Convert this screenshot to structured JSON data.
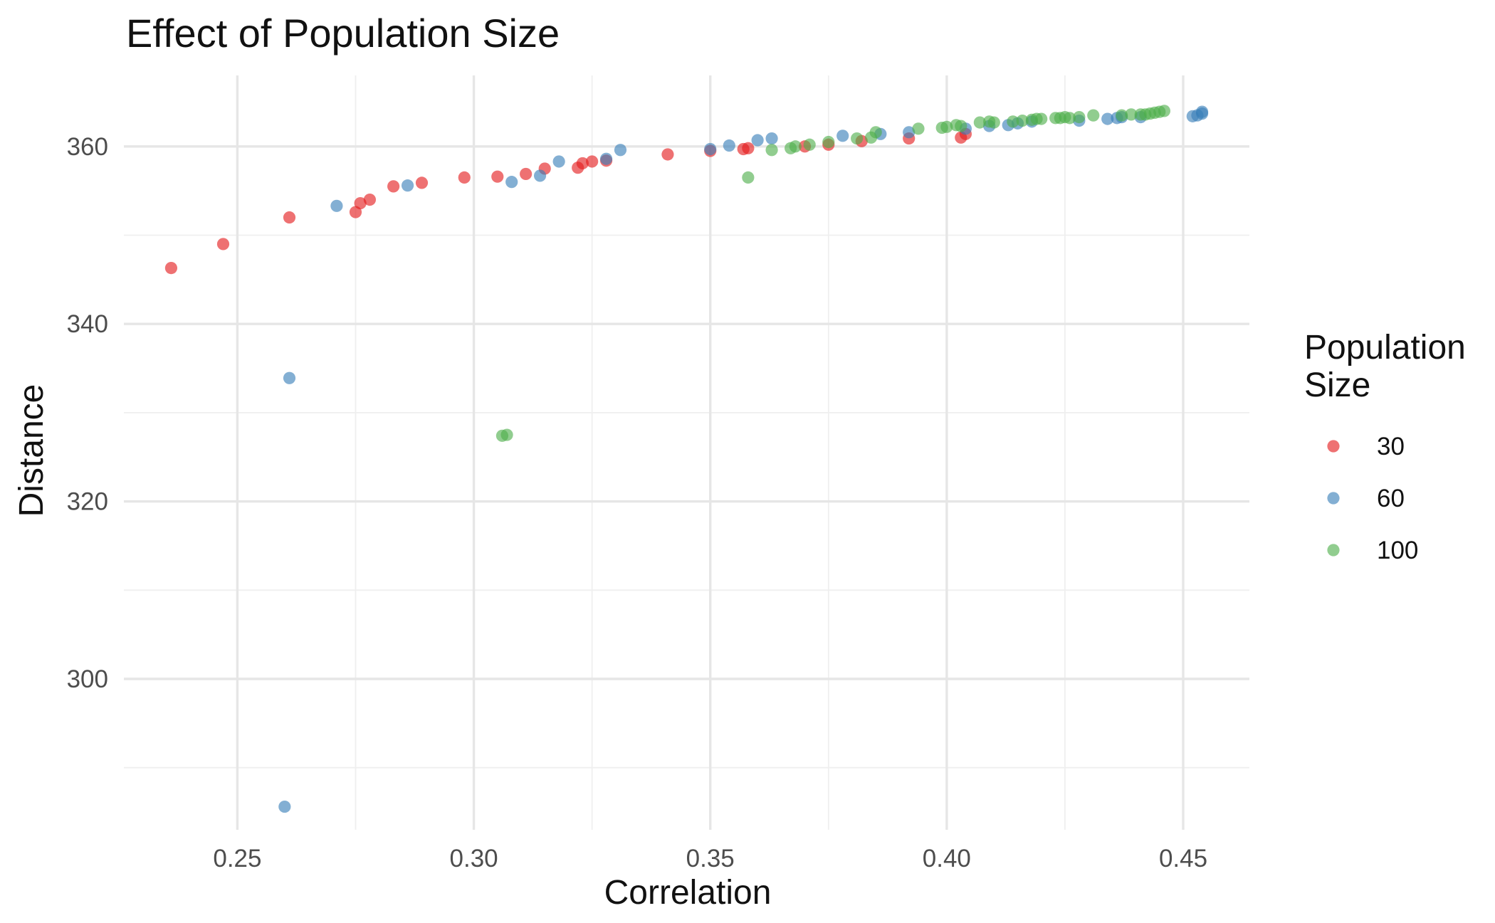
{
  "chart_data": {
    "type": "scatter",
    "title": "Effect of Population Size",
    "xlabel": "Correlation",
    "ylabel": "Distance",
    "xlim": [
      0.226,
      0.464
    ],
    "ylim": [
      283,
      368
    ],
    "x_ticks": [
      0.25,
      0.3,
      0.35,
      0.4,
      0.45
    ],
    "x_tick_labels": [
      "0.25",
      "0.30",
      "0.35",
      "0.40",
      "0.45"
    ],
    "y_ticks": [
      300,
      320,
      340,
      360
    ],
    "y_tick_labels": [
      "300",
      "320",
      "340",
      "360"
    ],
    "grid": true,
    "legend": {
      "title_lines": [
        "Population",
        "Size"
      ],
      "position": "right"
    },
    "series": [
      {
        "name": "30",
        "color": "#E41A1C",
        "points": [
          [
            0.236,
            346.3
          ],
          [
            0.247,
            349.0
          ],
          [
            0.261,
            352.0
          ],
          [
            0.275,
            352.6
          ],
          [
            0.276,
            353.6
          ],
          [
            0.278,
            354.0
          ],
          [
            0.283,
            355.5
          ],
          [
            0.289,
            355.9
          ],
          [
            0.298,
            356.5
          ],
          [
            0.305,
            356.6
          ],
          [
            0.311,
            356.9
          ],
          [
            0.315,
            357.5
          ],
          [
            0.322,
            357.6
          ],
          [
            0.323,
            358.1
          ],
          [
            0.325,
            358.3
          ],
          [
            0.328,
            358.4
          ],
          [
            0.341,
            359.1
          ],
          [
            0.35,
            359.5
          ],
          [
            0.357,
            359.7
          ],
          [
            0.358,
            359.8
          ],
          [
            0.37,
            360.0
          ],
          [
            0.375,
            360.2
          ],
          [
            0.382,
            360.6
          ],
          [
            0.392,
            360.9
          ],
          [
            0.403,
            361.0
          ],
          [
            0.404,
            361.4
          ]
        ]
      },
      {
        "name": "60",
        "color": "#377EB8",
        "points": [
          [
            0.26,
            285.6
          ],
          [
            0.261,
            333.9
          ],
          [
            0.271,
            353.3
          ],
          [
            0.286,
            355.6
          ],
          [
            0.308,
            356.0
          ],
          [
            0.314,
            356.7
          ],
          [
            0.318,
            358.3
          ],
          [
            0.328,
            358.6
          ],
          [
            0.331,
            359.6
          ],
          [
            0.35,
            359.7
          ],
          [
            0.354,
            360.1
          ],
          [
            0.36,
            360.7
          ],
          [
            0.363,
            360.9
          ],
          [
            0.378,
            361.2
          ],
          [
            0.386,
            361.4
          ],
          [
            0.392,
            361.6
          ],
          [
            0.404,
            362.0
          ],
          [
            0.409,
            362.3
          ],
          [
            0.413,
            362.4
          ],
          [
            0.415,
            362.6
          ],
          [
            0.418,
            362.8
          ],
          [
            0.428,
            362.9
          ],
          [
            0.434,
            363.1
          ],
          [
            0.436,
            363.2
          ],
          [
            0.437,
            363.3
          ],
          [
            0.441,
            363.3
          ],
          [
            0.452,
            363.4
          ],
          [
            0.453,
            363.5
          ],
          [
            0.454,
            363.7
          ],
          [
            0.454,
            363.9
          ]
        ]
      },
      {
        "name": "100",
        "color": "#4DAF4A",
        "points": [
          [
            0.306,
            327.4
          ],
          [
            0.307,
            327.5
          ],
          [
            0.358,
            356.5
          ],
          [
            0.363,
            359.6
          ],
          [
            0.367,
            359.8
          ],
          [
            0.368,
            360.0
          ],
          [
            0.371,
            360.2
          ],
          [
            0.375,
            360.5
          ],
          [
            0.381,
            360.9
          ],
          [
            0.384,
            361.0
          ],
          [
            0.385,
            361.6
          ],
          [
            0.394,
            362.0
          ],
          [
            0.399,
            362.1
          ],
          [
            0.4,
            362.2
          ],
          [
            0.402,
            362.4
          ],
          [
            0.403,
            362.3
          ],
          [
            0.407,
            362.7
          ],
          [
            0.409,
            362.8
          ],
          [
            0.41,
            362.7
          ],
          [
            0.414,
            362.8
          ],
          [
            0.416,
            362.9
          ],
          [
            0.418,
            363.0
          ],
          [
            0.419,
            363.1
          ],
          [
            0.42,
            363.1
          ],
          [
            0.423,
            363.2
          ],
          [
            0.424,
            363.2
          ],
          [
            0.425,
            363.3
          ],
          [
            0.426,
            363.2
          ],
          [
            0.428,
            363.3
          ],
          [
            0.431,
            363.5
          ],
          [
            0.437,
            363.5
          ],
          [
            0.439,
            363.6
          ],
          [
            0.441,
            363.6
          ],
          [
            0.442,
            363.6
          ],
          [
            0.443,
            363.7
          ],
          [
            0.444,
            363.8
          ],
          [
            0.445,
            363.9
          ],
          [
            0.446,
            364.0
          ]
        ]
      }
    ]
  }
}
